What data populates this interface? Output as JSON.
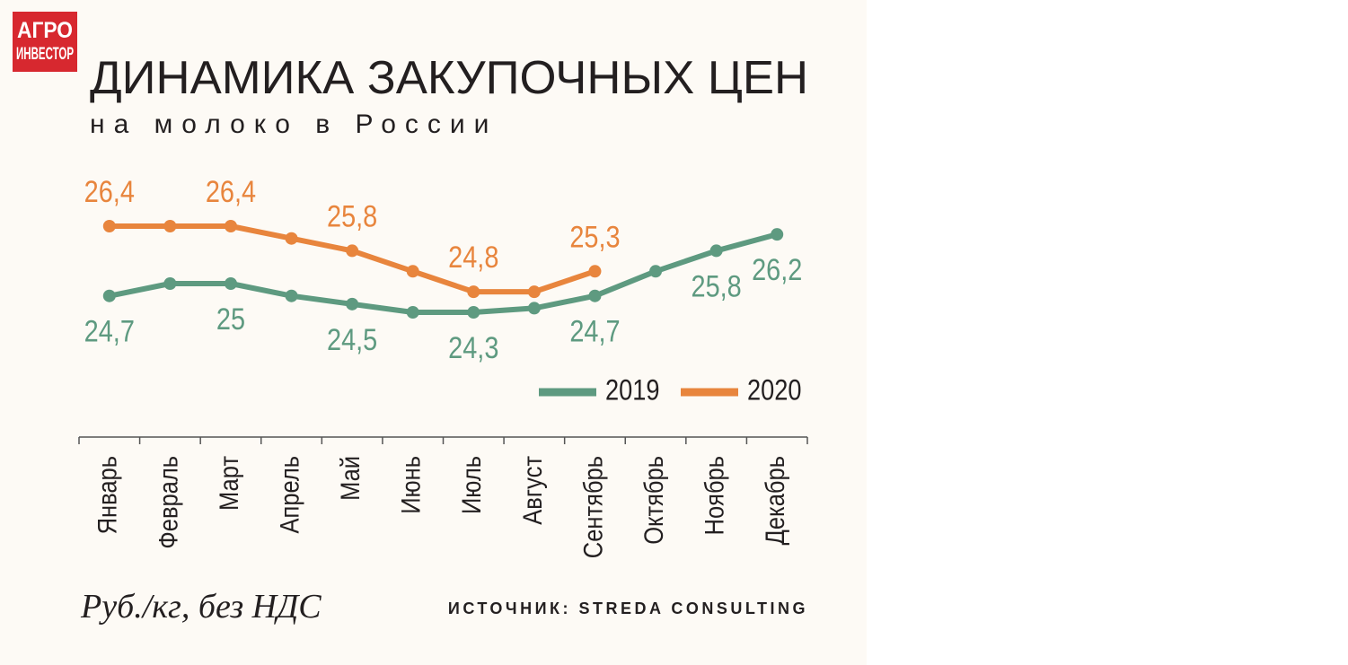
{
  "logo": {
    "line1": "АГРО",
    "line2": "ИНВЕСТОР"
  },
  "chart_data": {
    "type": "line",
    "title": "ДИНАМИКА ЗАКУПОЧНЫХ ЦЕН",
    "subtitle": "на молоко в России",
    "unit_label": "Руб./кг, без НДС",
    "source": "ИСТОЧНИК: STREDA CONSULTING",
    "categories": [
      "Январь",
      "Февраль",
      "Март",
      "Апрель",
      "Май",
      "Июнь",
      "Июль",
      "Август",
      "Сентябрь",
      "Октябрь",
      "Ноябрь",
      "Декабрь"
    ],
    "series": [
      {
        "name": "2019",
        "color": "#5e9a80",
        "values": [
          24.7,
          25.0,
          25,
          24.7,
          24.5,
          24.3,
          24.3,
          24.4,
          24.7,
          25.3,
          25.8,
          26.2
        ],
        "value_labels": [
          "24,7",
          null,
          "25",
          null,
          "24,5",
          null,
          "24,3",
          null,
          "24,7",
          null,
          "25,8",
          "26,2"
        ]
      },
      {
        "name": "2020",
        "color": "#e8853d",
        "values": [
          26.4,
          26.4,
          26.4,
          26.1,
          25.8,
          25.3,
          24.8,
          24.8,
          25.3,
          null,
          null,
          null
        ],
        "value_labels": [
          "26,4",
          null,
          "26,4",
          null,
          "25,8",
          null,
          "24,8",
          null,
          "25,3",
          null,
          null,
          null
        ]
      }
    ],
    "legend": "bottom-right"
  }
}
